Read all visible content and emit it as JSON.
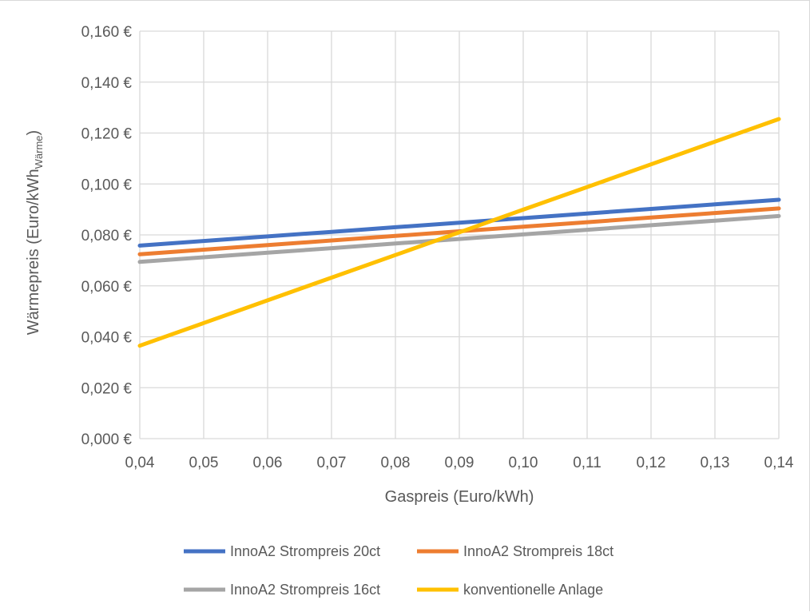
{
  "chart_data": {
    "type": "line",
    "title": "",
    "xlabel": "Gaspreis (Euro/kWh)",
    "ylabel": "Wärmepreis (Euro/kWh",
    "ylabel_subscript": "Wärme",
    "ylabel_close": ")",
    "x": [
      0.04,
      0.05,
      0.06,
      0.07,
      0.08,
      0.09,
      0.1,
      0.11,
      0.12,
      0.13,
      0.14
    ],
    "x_tick_labels": [
      "0,04",
      "0,05",
      "0,06",
      "0,07",
      "0,08",
      "0,09",
      "0,10",
      "0,11",
      "0,12",
      "0,13",
      "0,14"
    ],
    "xlim": [
      0.04,
      0.14
    ],
    "ylim": [
      0,
      0.16
    ],
    "y_ticks": [
      0,
      0.02,
      0.04,
      0.06,
      0.08,
      0.1,
      0.12,
      0.14,
      0.16
    ],
    "y_tick_labels": [
      "0,000 €",
      "0,020 €",
      "0,040 €",
      "0,060 €",
      "0,080 €",
      "0,100 €",
      "0,120 €",
      "0,140 €",
      "0,160 €"
    ],
    "grid": true,
    "legend_position": "bottom",
    "series": [
      {
        "name": "InnoA2 Strompreis 20ct",
        "color": "#4472C4",
        "values": [
          0.0758,
          0.0776,
          0.0794,
          0.0812,
          0.083,
          0.0848,
          0.0866,
          0.0884,
          0.0902,
          0.092,
          0.0938
        ]
      },
      {
        "name": "InnoA2 Strompreis 18ct",
        "color": "#ED7D31",
        "values": [
          0.0724,
          0.0742,
          0.076,
          0.0778,
          0.0796,
          0.0814,
          0.0832,
          0.085,
          0.0868,
          0.0886,
          0.0904
        ]
      },
      {
        "name": "InnoA2 Strompreis 16ct",
        "color": "#A5A5A5",
        "values": [
          0.0694,
          0.0712,
          0.073,
          0.0748,
          0.0766,
          0.0784,
          0.0802,
          0.082,
          0.0838,
          0.0856,
          0.0874
        ]
      },
      {
        "name": "konventionelle Anlage",
        "color": "#FFC000",
        "values": [
          0.0365,
          0.0454,
          0.0543,
          0.0632,
          0.0721,
          0.081,
          0.0899,
          0.0988,
          0.1077,
          0.1166,
          0.1255
        ]
      }
    ]
  }
}
